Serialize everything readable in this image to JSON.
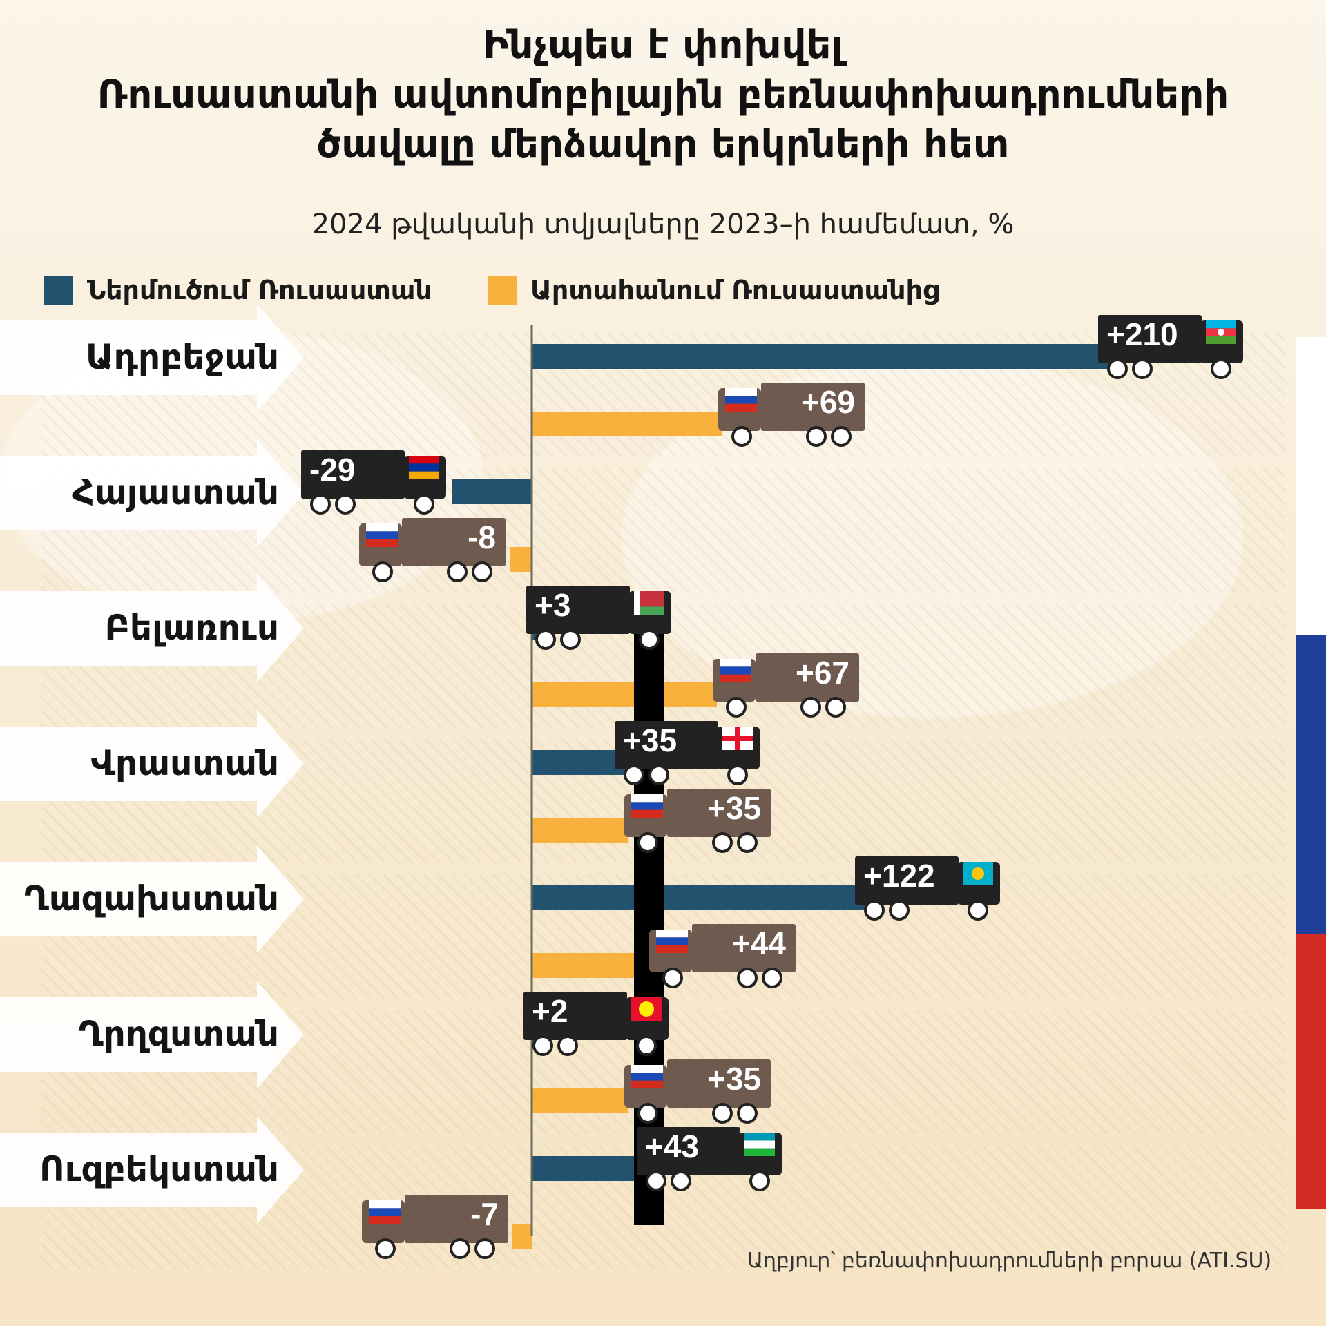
{
  "title_lines": [
    "Ինչպես է փոխվել",
    "Ռուսաստանի ավտոմոբիլային բեռնափոխադրումների",
    "ծավալը մերձավոր երկրների հետ"
  ],
  "subtitle": "2024 թվականի տվյալները 2023–ի համեմատ, %",
  "legend": {
    "import_label": "Ներմուծում Ռուսաստան",
    "export_label": "Արտահանում Ռուսաստանից"
  },
  "source": "Աղբյուր՝ բեռնափոխադրումների բորսա (ATI.SU)",
  "colors": {
    "import": "#23526f",
    "export": "#f8b13c",
    "truck_import": "#222222",
    "truck_export": "#6e5a4f"
  },
  "chart_data": {
    "type": "bar",
    "orientation": "horizontal",
    "categories": [
      "Ադրբեջան",
      "Հայաստան",
      "Բելառուս",
      "Վրաստան",
      "Ղազախստան",
      "Ղրղզստան",
      "Ուզբեկստան"
    ],
    "series": [
      {
        "name": "Ներմուծում Ռուսաստան",
        "values": [
          210,
          -29,
          3,
          35,
          122,
          2,
          43
        ],
        "labels": [
          "+210",
          "-29",
          "+3",
          "+35",
          "+122",
          "+2",
          "+43"
        ],
        "flags": [
          "azerbaijan-flag",
          "armenia-flag",
          "belarus-flag",
          "georgia-flag",
          "kazakhstan-flag",
          "kyrgyzstan-flag",
          "uzbekistan-flag"
        ]
      },
      {
        "name": "Արտահանում Ռուսաստանից",
        "values": [
          69,
          -8,
          67,
          35,
          44,
          35,
          -7
        ],
        "labels": [
          "+69",
          "-8",
          "+67",
          "+35",
          "+44",
          "+35",
          "-7"
        ],
        "flags": [
          "russia-flag",
          "russia-flag",
          "russia-flag",
          "russia-flag",
          "russia-flag",
          "russia-flag",
          "russia-flag"
        ]
      }
    ],
    "unit": "%",
    "xlim": [
      -80,
      260
    ],
    "grid": false
  }
}
